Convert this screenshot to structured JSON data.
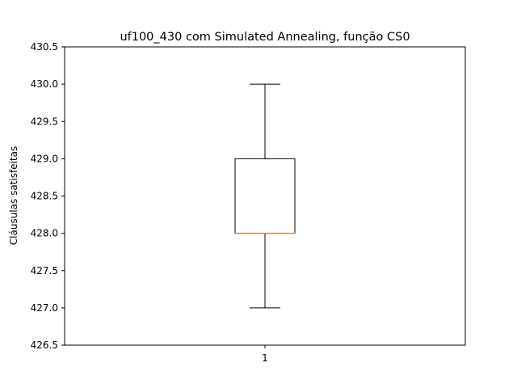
{
  "chart_data": {
    "type": "box",
    "title": "uf100_430 com Simulated Annealing, função CS0",
    "xlabel": "",
    "ylabel": "Cláusulas satisfeitas",
    "ylim": [
      426.5,
      430.5
    ],
    "yticks": [
      "426.5",
      "427.0",
      "427.5",
      "428.0",
      "428.5",
      "429.0",
      "429.5",
      "430.0",
      "430.5"
    ],
    "categories": [
      "1"
    ],
    "boxes": [
      {
        "category": "1",
        "whisker_low": 427.0,
        "q1": 428.0,
        "median": 428.0,
        "q3": 429.0,
        "whisker_high": 430.0
      }
    ],
    "grid": false,
    "colors": {
      "box": "#000000",
      "median": "#ff7f0e",
      "whisker": "#000000"
    }
  }
}
